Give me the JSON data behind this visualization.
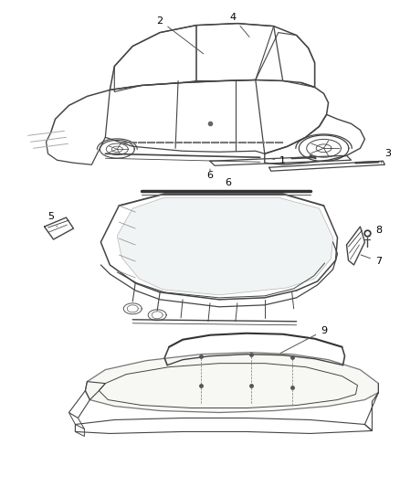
{
  "background_color": "#ffffff",
  "line_color": "#444444",
  "fig_width": 4.38,
  "fig_height": 5.33,
  "dpi": 100
}
